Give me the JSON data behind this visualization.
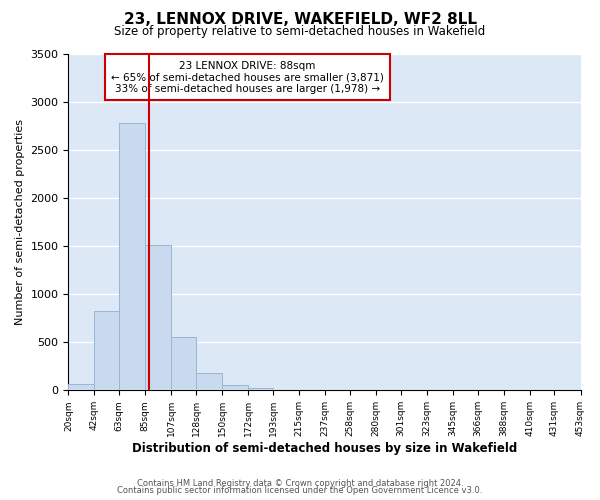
{
  "title": "23, LENNOX DRIVE, WAKEFIELD, WF2 8LL",
  "subtitle": "Size of property relative to semi-detached houses in Wakefield",
  "xlabel": "Distribution of semi-detached houses by size in Wakefield",
  "ylabel": "Number of semi-detached properties",
  "bin_labels": [
    "20sqm",
    "42sqm",
    "63sqm",
    "85sqm",
    "107sqm",
    "128sqm",
    "150sqm",
    "172sqm",
    "193sqm",
    "215sqm",
    "237sqm",
    "258sqm",
    "280sqm",
    "301sqm",
    "323sqm",
    "345sqm",
    "366sqm",
    "388sqm",
    "410sqm",
    "431sqm",
    "453sqm"
  ],
  "bar_values": [
    65,
    830,
    2780,
    1510,
    555,
    185,
    55,
    25,
    0,
    0,
    0,
    0,
    0,
    0,
    0,
    0,
    0,
    0,
    0,
    0
  ],
  "bar_color": "#c9d9ee",
  "bar_edge_color": "#9ab5d5",
  "property_line_x": 88,
  "property_line_color": "#cc0000",
  "annotation_title": "23 LENNOX DRIVE: 88sqm",
  "annotation_line1": "← 65% of semi-detached houses are smaller (3,871)",
  "annotation_line2": "33% of semi-detached houses are larger (1,978) →",
  "annotation_box_color": "#ffffff",
  "annotation_box_edge": "#cc0000",
  "ylim": [
    0,
    3500
  ],
  "yticks": [
    0,
    500,
    1000,
    1500,
    2000,
    2500,
    3000,
    3500
  ],
  "plot_bg_color": "#dce8f5",
  "grid_color": "#ffffff",
  "footer1": "Contains HM Land Registry data © Crown copyright and database right 2024.",
  "footer2": "Contains public sector information licensed under the Open Government Licence v3.0."
}
